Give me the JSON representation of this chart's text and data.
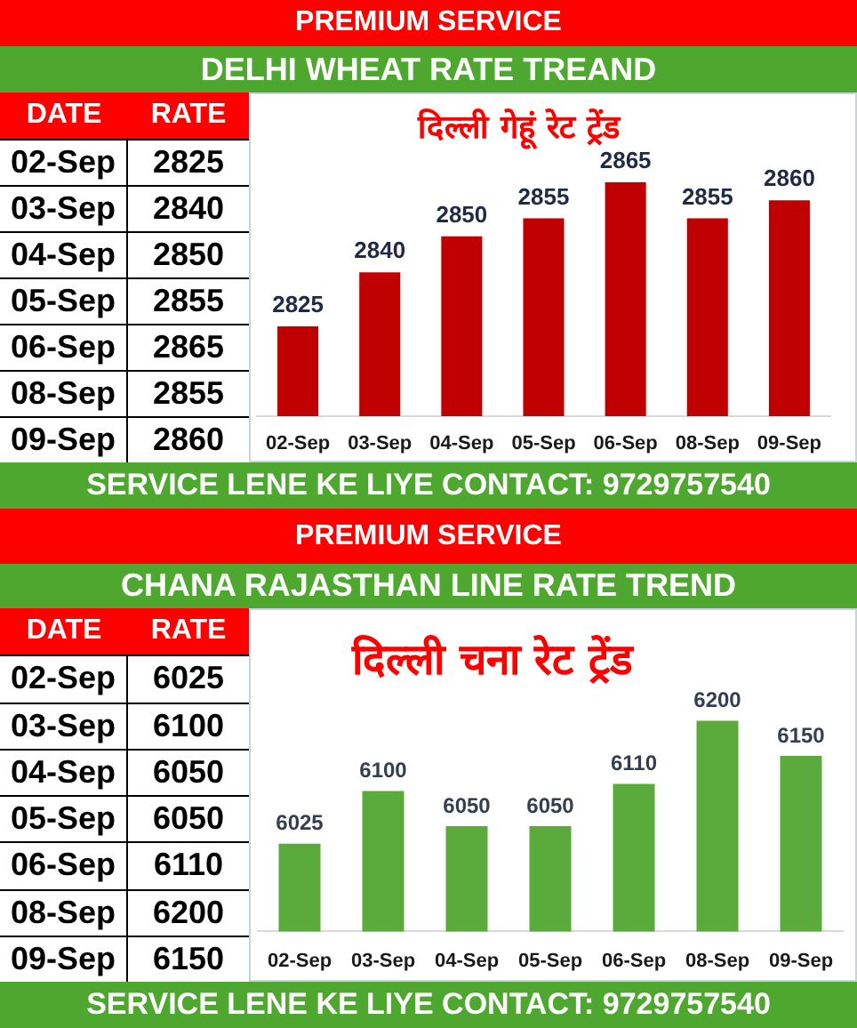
{
  "chart_data": [
    {
      "type": "other",
      "annotations": [
        "DATE",
        "RATE"
      ],
      "categories": [
        "02-Sep",
        "03-Sep",
        "04-Sep",
        "05-Sep",
        "06-Sep",
        "08-Sep",
        "09-Sep"
      ],
      "values": [
        2825,
        2840,
        2850,
        2855,
        2865,
        2855,
        2860
      ],
      "data_labels": true
    },
    {
      "type": "bar",
      "title": "DELHI WHEAT RATE TREAND",
      "subtitle": "दिल्ली गेहूं रेट ट्रेंड",
      "annotations": [
        "PREMIUM SERVICE",
        "SERVICE LENE KE LIYE CONTACT: 9729757540"
      ],
      "categories": [
        "02-Sep",
        "03-Sep",
        "04-Sep",
        "05-Sep",
        "06-Sep",
        "08-Sep",
        "09-Sep"
      ],
      "values": [
        2825,
        2840,
        2850,
        2855,
        2865,
        2855,
        2860
      ],
      "color": "#c00000",
      "ylim": [
        2800,
        2890
      ],
      "tick_labels": "x",
      "data_labels": true
    },
    {
      "type": "other",
      "annotations": [
        "DATE",
        "RATE"
      ],
      "categories": [
        "02-Sep",
        "03-Sep",
        "04-Sep",
        "05-Sep",
        "06-Sep",
        "08-Sep",
        "09-Sep"
      ],
      "values": [
        6025,
        6100,
        6050,
        6050,
        6110,
        6200,
        6150
      ],
      "data_labels": true
    },
    {
      "type": "bar",
      "title": "CHANA RAJASTHAN LINE RATE TREND",
      "subtitle": "दिल्ली चना रेट ट्रेंड",
      "annotations": [
        "PREMIUM SERVICE",
        "SERVICE LENE KE LIYE CONTACT: 9729757540"
      ],
      "categories": [
        "02-Sep",
        "03-Sep",
        "04-Sep",
        "05-Sep",
        "06-Sep",
        "08-Sep",
        "09-Sep"
      ],
      "values": [
        6025,
        6100,
        6050,
        6050,
        6110,
        6200,
        6150
      ],
      "color": "#5aaa3c",
      "ylim": [
        5900,
        6360
      ],
      "tick_labels": "x",
      "data_labels": true
    }
  ]
}
